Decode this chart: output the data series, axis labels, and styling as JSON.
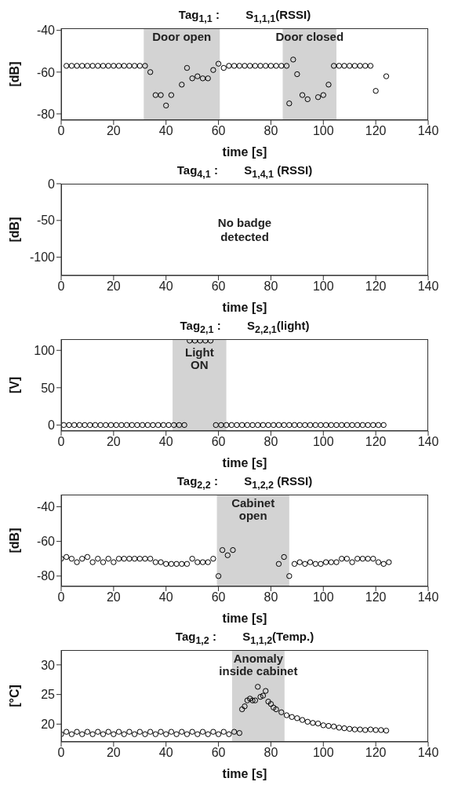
{
  "chart_data": [
    {
      "type": "scatter",
      "title": "Tag$_{1,1}$ :        S$_{1,1,1}$(RSSI)",
      "xlabel": "time [s]",
      "ylabel": "[dB]",
      "xlim": [
        0,
        140
      ],
      "xticks": [
        0,
        20,
        40,
        60,
        80,
        100,
        120,
        140
      ],
      "ylim": [
        -83,
        -39
      ],
      "yticks": [
        -80,
        -60,
        -40
      ],
      "marker": "circle",
      "color": "#000000",
      "x": [
        2,
        4,
        6,
        8,
        10,
        12,
        14,
        16,
        18,
        20,
        22,
        24,
        26,
        28,
        30,
        32,
        34,
        36,
        38,
        40,
        42,
        46,
        48,
        50,
        52,
        54,
        56,
        58,
        60,
        62,
        64,
        66,
        68,
        70,
        72,
        74,
        76,
        78,
        80,
        82,
        84,
        86,
        87,
        88.5,
        90,
        92,
        94,
        98,
        100,
        102,
        104,
        106,
        108,
        110,
        112,
        114,
        116,
        118,
        120,
        124
      ],
      "values": [
        -57,
        -57,
        -57,
        -57,
        -57,
        -57,
        -57,
        -57,
        -57,
        -57,
        -57,
        -57,
        -57,
        -57,
        -57,
        -57,
        -60,
        -71,
        -71,
        -76,
        -71,
        -66,
        -58,
        -63,
        -62,
        -63,
        -63,
        -59,
        -56,
        -58,
        -57,
        -57,
        -57,
        -57,
        -57,
        -57,
        -57,
        -57,
        -57,
        -57,
        -57,
        -57,
        -75,
        -54,
        -61,
        -71,
        -73,
        -72,
        -71,
        -66,
        -57,
        -57,
        -57,
        -57,
        -57,
        -57,
        -57,
        -57,
        -69,
        -62
      ],
      "bands": [
        {
          "axis": "x",
          "from": 31.5,
          "to": 60.5,
          "label": "Door open",
          "color": "#d3d3d3"
        },
        {
          "axis": "x",
          "from": 84.5,
          "to": 105,
          "label": "Door closed",
          "color": "#d3d3d3"
        }
      ]
    },
    {
      "type": "scatter",
      "title": "Tag$_{4,1}$ :        S$_{1,4,1}$ (RSSI)",
      "xlabel": "time [s]",
      "ylabel": "[dB]",
      "xlim": [
        0,
        140
      ],
      "xticks": [
        0,
        20,
        40,
        60,
        80,
        100,
        120,
        140
      ],
      "ylim": [
        -125,
        0
      ],
      "yticks": [
        -100,
        -50,
        0
      ],
      "annotations": [
        "No badge\ndetected"
      ]
    },
    {
      "type": "scatter",
      "title": "Tag$_{2,1}$ :        S$_{2,2,1}$(light)",
      "xlabel": "time [s]",
      "ylabel": "[V]",
      "xlim": [
        0,
        140
      ],
      "xticks": [
        0,
        20,
        40,
        60,
        80,
        100,
        120,
        140
      ],
      "ylim": [
        -8,
        115
      ],
      "yticks": [
        0,
        50,
        100
      ],
      "marker": "circle",
      "color": "#000000",
      "x": [
        1,
        3,
        5,
        7,
        9,
        11,
        13,
        15,
        17,
        19,
        21,
        23,
        25,
        27,
        29,
        31,
        33,
        35,
        37,
        39,
        41,
        43,
        45,
        47,
        49,
        51,
        53,
        55,
        57,
        59,
        61,
        63,
        65,
        67,
        69,
        71,
        73,
        75,
        77,
        79,
        81,
        83,
        85,
        87,
        89,
        91,
        93,
        95,
        97,
        99,
        101,
        103,
        105,
        107,
        109,
        111,
        113,
        115,
        117,
        119,
        121,
        123
      ],
      "values": [
        0,
        0,
        0,
        0,
        0,
        0,
        0,
        0,
        0,
        0,
        0,
        0,
        0,
        0,
        0,
        0,
        0,
        0,
        0,
        0,
        0,
        0,
        0,
        0,
        113,
        113,
        113,
        113,
        113,
        0,
        0,
        0,
        0,
        0,
        0,
        0,
        0,
        0,
        0,
        0,
        0,
        0,
        0,
        0,
        0,
        0,
        0,
        0,
        0,
        0,
        0,
        0,
        0,
        0,
        0,
        0,
        0,
        0,
        0,
        0,
        0,
        0
      ],
      "bands": [
        {
          "axis": "x",
          "from": 42.5,
          "to": 63,
          "label": "Light\nON",
          "color": "#d3d3d3"
        }
      ]
    },
    {
      "type": "scatter",
      "title": "Tag$_{2,2}$ :        S$_{1,2,2}$ (RSSI)",
      "xlabel": "time [s]",
      "ylabel": "[dB]",
      "xlim": [
        0,
        140
      ],
      "xticks": [
        0,
        20,
        40,
        60,
        80,
        100,
        120,
        140
      ],
      "ylim": [
        -86,
        -33
      ],
      "yticks": [
        -80,
        -60,
        -40
      ],
      "marker": "circle",
      "color": "#000000",
      "x": [
        0,
        2,
        4,
        6,
        8,
        10,
        12,
        14,
        16,
        18,
        20,
        22,
        24,
        26,
        28,
        30,
        32,
        34,
        36,
        38,
        40,
        42,
        44,
        46,
        48,
        50,
        52,
        54,
        56,
        58,
        60,
        61.5,
        63.5,
        65.5,
        83,
        85,
        87,
        89,
        91,
        93,
        95,
        97,
        99,
        101,
        103,
        105,
        107,
        109,
        111,
        113,
        115,
        117,
        119,
        121,
        123,
        125
      ],
      "values": [
        -70,
        -69,
        -70,
        -72,
        -70,
        -69,
        -72,
        -70,
        -72,
        -70,
        -72,
        -70,
        -70,
        -70,
        -70,
        -70,
        -70,
        -70,
        -72,
        -72,
        -73,
        -73,
        -73,
        -73,
        -73,
        -70,
        -72,
        -72,
        -72,
        -70,
        -80,
        -65,
        -68,
        -65,
        -73,
        -69,
        -80,
        -73,
        -72,
        -73,
        -72,
        -73,
        -73,
        -72,
        -72,
        -72,
        -70,
        -70,
        -72,
        -70,
        -70,
        -70,
        -70,
        -72,
        -73,
        -72
      ],
      "bands": [
        {
          "axis": "x",
          "from": 59.4,
          "to": 87,
          "label": "Cabinet\nopen",
          "color": "#d3d3d3"
        }
      ]
    },
    {
      "type": "scatter",
      "title": "Tag$_{1,2}$ :        S$_{1,1,2}$(Temp.)",
      "xlabel": "time [s]",
      "ylabel": "[°C]",
      "xlim": [
        0,
        140
      ],
      "xticks": [
        0,
        20,
        40,
        60,
        80,
        100,
        120,
        140
      ],
      "ylim": [
        17,
        32.5
      ],
      "yticks": [
        20,
        25,
        30
      ],
      "marker": "circle",
      "color": "#000000",
      "x": [
        0,
        2,
        4,
        6,
        8,
        10,
        12,
        14,
        16,
        18,
        20,
        22,
        24,
        26,
        28,
        30,
        32,
        34,
        36,
        38,
        40,
        42,
        44,
        46,
        48,
        50,
        52,
        54,
        56,
        58,
        60,
        62,
        64,
        66,
        68,
        69,
        70,
        71,
        72,
        73,
        74,
        75,
        76,
        77,
        78,
        79,
        80,
        81,
        82,
        84,
        86,
        88,
        90,
        92,
        94,
        96,
        98,
        100,
        102,
        104,
        106,
        108,
        110,
        112,
        114,
        116,
        118,
        120,
        122,
        124
      ],
      "values": [
        18.3,
        18.7,
        18.3,
        18.7,
        18.3,
        18.7,
        18.3,
        18.7,
        18.3,
        18.7,
        18.3,
        18.7,
        18.3,
        18.7,
        18.3,
        18.7,
        18.3,
        18.7,
        18.3,
        18.7,
        18.3,
        18.7,
        18.3,
        18.7,
        18.3,
        18.7,
        18.3,
        18.7,
        18.3,
        18.7,
        18.3,
        18.7,
        18.3,
        18.7,
        18.5,
        22.5,
        23,
        24,
        24.3,
        24,
        24,
        26.3,
        24.6,
        24.8,
        25.6,
        23.8,
        23.4,
        22.8,
        22.5,
        22,
        21.5,
        21.2,
        21,
        20.7,
        20.4,
        20.2,
        20.1,
        19.8,
        19.7,
        19.6,
        19.4,
        19.3,
        19.2,
        19.1,
        19.1,
        19,
        19.1,
        19,
        19,
        18.9
      ],
      "bands": [
        {
          "axis": "x",
          "from": 65.2,
          "to": 85.2,
          "label": "Anomaly\ninside cabinet",
          "color": "#d3d3d3"
        }
      ]
    }
  ]
}
